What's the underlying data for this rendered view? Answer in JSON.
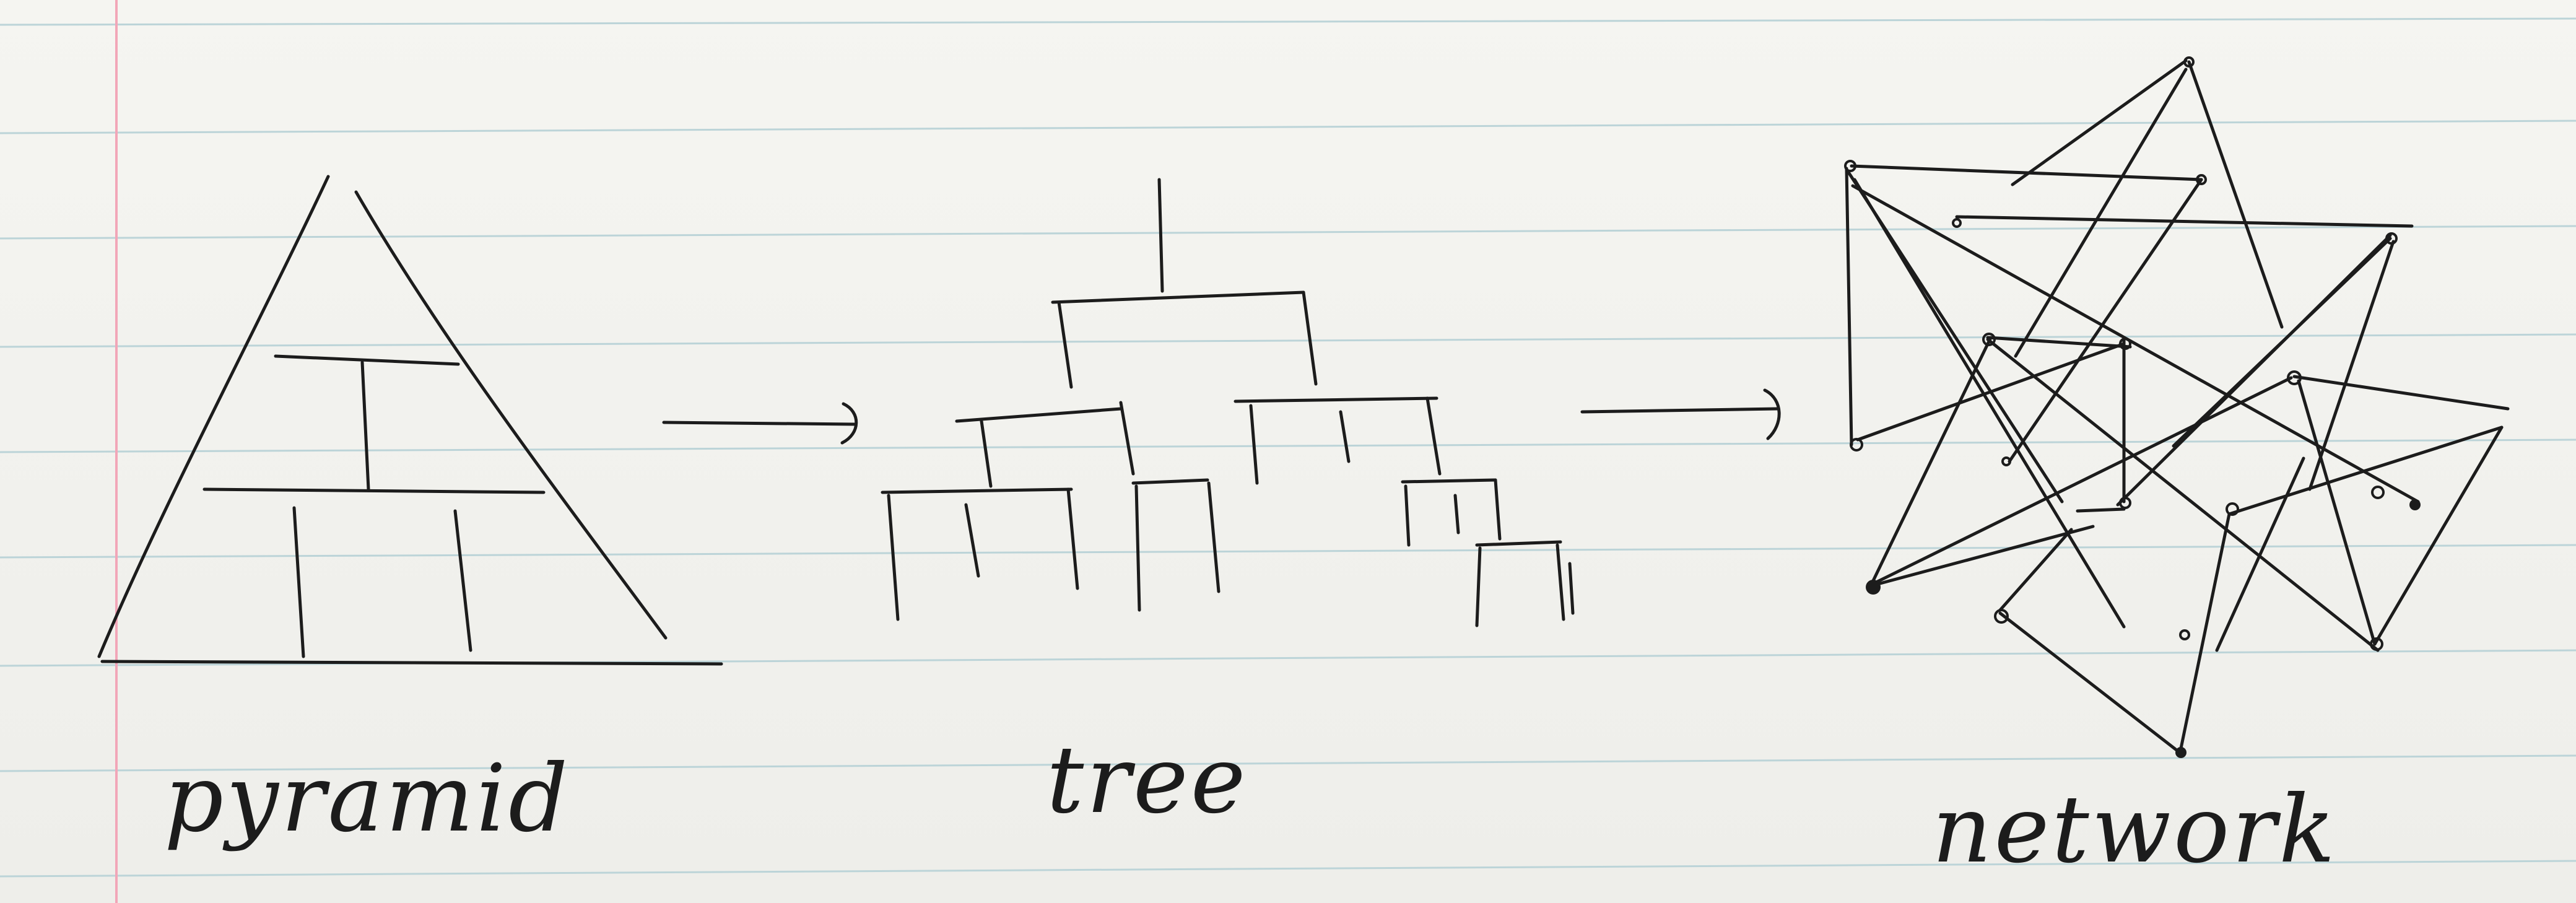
{
  "diagram": {
    "labels": {
      "pyramid": "pyramid",
      "tree": "tree",
      "network": "network"
    },
    "colors": {
      "ink": "#1c1c1c",
      "paper": "#f3f3ef",
      "rule_line": "#bcd4d8",
      "margin_line": "#f2a6b8"
    }
  }
}
